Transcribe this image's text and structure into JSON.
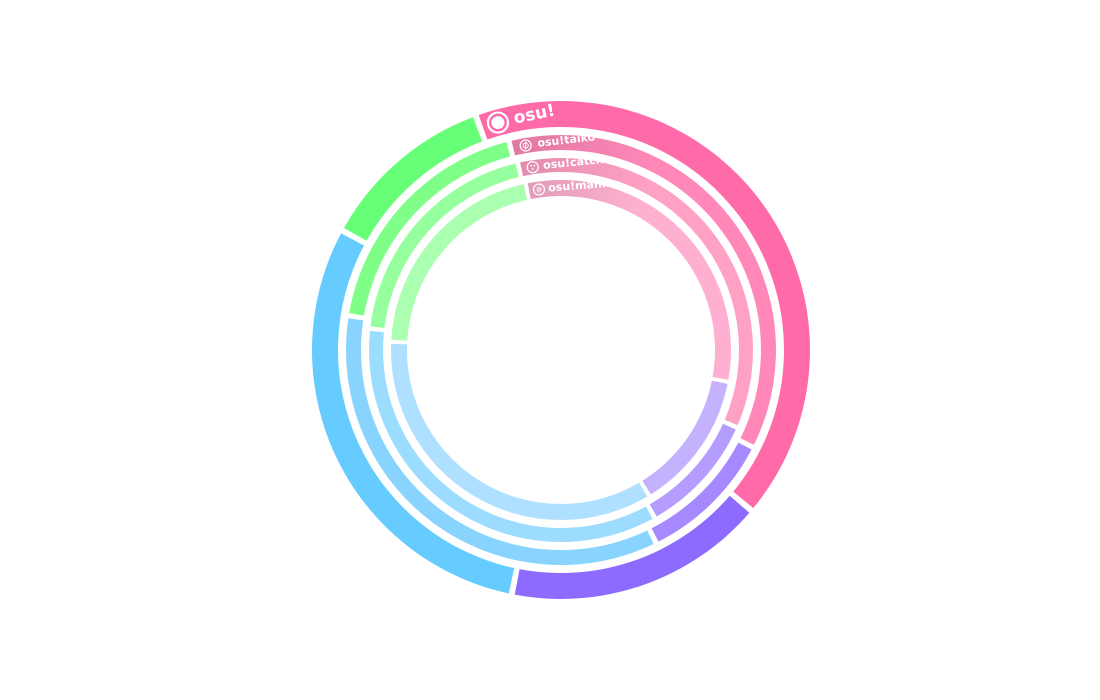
{
  "chart_data": {
    "type": "pie",
    "variant": "concentric-rings",
    "rings": [
      {
        "name": "osu!",
        "icon": "osu-mode-icon",
        "segments": [
          {
            "color": "#ff6aa9",
            "value": 0.392
          },
          {
            "color": "#8e6bff",
            "value": 0.16
          },
          {
            "color": "#66ccff",
            "value": 0.28
          },
          {
            "color": "#66ff77",
            "value": 0.108
          }
        ]
      },
      {
        "name": "osu!taiko",
        "icon": "taiko-mode-icon",
        "segments": [
          {
            "color": "#ff88b8",
            "value": 0.337
          },
          {
            "color": "#a688ff",
            "value": 0.095
          },
          {
            "color": "#88d4ff",
            "value": 0.323
          },
          {
            "color": "#80ff88",
            "value": 0.172
          }
        ]
      },
      {
        "name": "osu!catch",
        "icon": "catch-mode-icon",
        "segments": [
          {
            "color": "#ffa0c5",
            "value": 0.325
          },
          {
            "color": "#b59cff",
            "value": 0.095
          },
          {
            "color": "#9cdcff",
            "value": 0.322
          },
          {
            "color": "#96ff9e",
            "value": 0.181
          }
        ]
      },
      {
        "name": "osu!mania",
        "icon": "mania-mode-icon",
        "segments": [
          {
            "color": "#ffb0d0",
            "value": 0.282
          },
          {
            "color": "#c5b2ff",
            "value": 0.12
          },
          {
            "color": "#b0e0ff",
            "value": 0.31
          },
          {
            "color": "#aaffb0",
            "value": 0.188
          }
        ]
      }
    ]
  }
}
